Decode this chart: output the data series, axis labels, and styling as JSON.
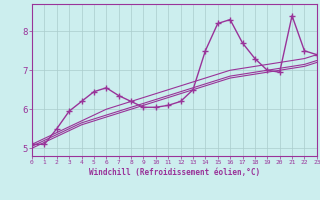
{
  "title": "",
  "xlabel": "Windchill (Refroidissement éolien,°C)",
  "ylabel": "",
  "xlim": [
    0,
    23
  ],
  "ylim": [
    4.8,
    8.7
  ],
  "xticks": [
    0,
    1,
    2,
    3,
    4,
    5,
    6,
    7,
    8,
    9,
    10,
    11,
    12,
    13,
    14,
    15,
    16,
    17,
    18,
    19,
    20,
    21,
    22,
    23
  ],
  "yticks": [
    5,
    6,
    7,
    8
  ],
  "bg_color": "#cceeee",
  "line_color": "#993399",
  "grid_color": "#aacccc",
  "data_x": [
    0,
    1,
    2,
    3,
    4,
    5,
    6,
    7,
    8,
    9,
    10,
    11,
    12,
    13,
    14,
    15,
    16,
    17,
    18,
    19,
    20,
    21,
    22,
    23
  ],
  "data_y_main": [
    5.1,
    5.1,
    5.5,
    5.95,
    6.2,
    6.45,
    6.55,
    6.35,
    6.2,
    6.05,
    6.05,
    6.1,
    6.2,
    6.5,
    7.5,
    8.2,
    8.3,
    7.7,
    7.3,
    7.0,
    6.95,
    8.4,
    7.5,
    7.4
  ],
  "data_y_reg1": [
    5.1,
    5.25,
    5.4,
    5.55,
    5.7,
    5.85,
    6.0,
    6.1,
    6.2,
    6.3,
    6.4,
    6.5,
    6.6,
    6.7,
    6.8,
    6.9,
    7.0,
    7.05,
    7.1,
    7.15,
    7.2,
    7.25,
    7.3,
    7.4
  ],
  "data_y_reg2": [
    5.05,
    5.2,
    5.35,
    5.5,
    5.65,
    5.75,
    5.85,
    5.95,
    6.05,
    6.15,
    6.25,
    6.35,
    6.45,
    6.55,
    6.65,
    6.75,
    6.85,
    6.9,
    6.95,
    7.0,
    7.05,
    7.1,
    7.15,
    7.25
  ],
  "data_y_reg3": [
    5.0,
    5.15,
    5.3,
    5.45,
    5.6,
    5.7,
    5.8,
    5.9,
    6.0,
    6.1,
    6.2,
    6.3,
    6.4,
    6.5,
    6.6,
    6.7,
    6.8,
    6.85,
    6.9,
    6.95,
    7.0,
    7.05,
    7.1,
    7.2
  ]
}
